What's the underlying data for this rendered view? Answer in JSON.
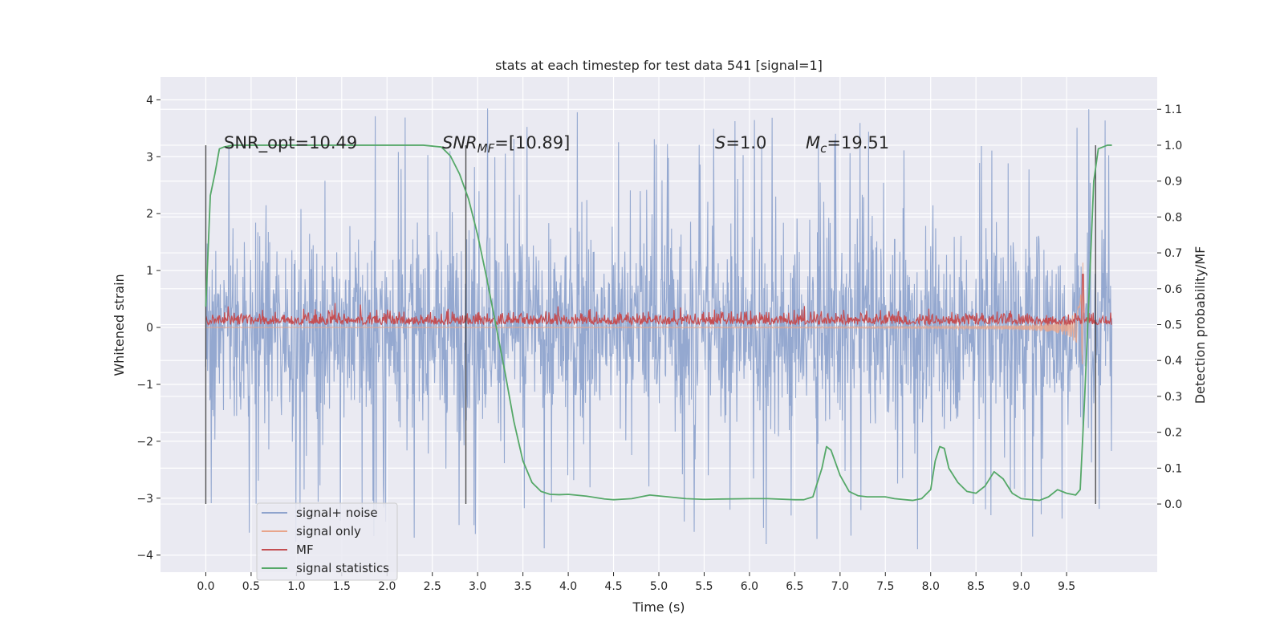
{
  "chart_data": {
    "type": "line",
    "title": "stats at each timestep for test data 541 [signal=1]",
    "xlabel": "Time (s)",
    "ylabel_left": "Whitened strain",
    "ylabel_right": "Detection probability/MF",
    "xlim": [
      -0.5,
      10.5
    ],
    "ylim_left": [
      -4.3,
      4.4
    ],
    "ylim_right": [
      -0.19,
      1.19
    ],
    "x_ticks": [
      "0.0",
      "0.5",
      "1.0",
      "1.5",
      "2.0",
      "2.5",
      "3.0",
      "3.5",
      "4.0",
      "4.5",
      "5.0",
      "5.5",
      "6.0",
      "6.5",
      "7.0",
      "7.5",
      "8.0",
      "8.5",
      "9.0",
      "9.5"
    ],
    "y_ticks_left": [
      "−4",
      "−3",
      "−2",
      "−1",
      "0",
      "1",
      "2",
      "3",
      "4"
    ],
    "y_ticks_right": [
      "0.0",
      "0.1",
      "0.2",
      "0.3",
      "0.4",
      "0.5",
      "0.6",
      "0.7",
      "0.8",
      "0.9",
      "1.0",
      "1.1"
    ],
    "grid": true,
    "legend_position": "lower-left",
    "annotations": {
      "snr_opt": "SNR_opt=10.49",
      "snr_mf_base": "SNR",
      "snr_mf_sub": "MF",
      "snr_mf_value": "=[10.89]",
      "s_label": "S",
      "s_value": "=1.0",
      "mc_base": "M",
      "mc_sub": "c",
      "mc_value": "=19.51"
    },
    "series": [
      {
        "name": "signal+ noise",
        "color": "#8fa4cd",
        "axis": "left",
        "x_range": [
          0.0,
          10.0
        ],
        "approx_range": [
          -3.9,
          4.05
        ],
        "typical_range": [
          -1.9,
          1.9
        ]
      },
      {
        "name": "signal only",
        "color": "#e8a58b",
        "axis": "left",
        "x_range": [
          0.0,
          9.68
        ],
        "chirp_peak_time": 9.68,
        "peak_amplitude": 2.4
      },
      {
        "name": "MF",
        "color": "#c44e52",
        "axis": "right",
        "x_range": [
          0.0,
          10.0
        ],
        "baseline": 0.5,
        "noise_band": [
          0.48,
          0.56
        ],
        "peak": {
          "x": 9.68,
          "y": 0.64
        }
      },
      {
        "name": "signal statistics",
        "color": "#55a868",
        "axis": "right",
        "x": [
          0.0,
          0.05,
          0.1,
          0.15,
          0.2,
          0.3,
          0.5,
          1.0,
          1.5,
          2.0,
          2.4,
          2.6,
          2.7,
          2.8,
          2.9,
          3.0,
          3.1,
          3.2,
          3.3,
          3.4,
          3.5,
          3.6,
          3.7,
          3.8,
          3.9,
          4.0,
          4.2,
          4.4,
          4.5,
          4.7,
          4.9,
          5.1,
          5.3,
          5.5,
          5.7,
          6.0,
          6.2,
          6.5,
          6.6,
          6.7,
          6.8,
          6.85,
          6.9,
          7.0,
          7.1,
          7.2,
          7.3,
          7.5,
          7.6,
          7.8,
          7.9,
          8.0,
          8.05,
          8.1,
          8.15,
          8.2,
          8.3,
          8.4,
          8.5,
          8.6,
          8.7,
          8.8,
          8.9,
          9.0,
          9.2,
          9.3,
          9.4,
          9.5,
          9.6,
          9.65,
          9.7,
          9.75,
          9.8,
          9.85,
          9.9,
          9.95,
          10.0
        ],
        "y": [
          0.55,
          0.86,
          0.92,
          0.99,
          0.995,
          1.0,
          1.0,
          1.0,
          1.0,
          1.0,
          1.0,
          0.995,
          0.97,
          0.92,
          0.85,
          0.75,
          0.63,
          0.5,
          0.37,
          0.23,
          0.12,
          0.06,
          0.035,
          0.027,
          0.026,
          0.027,
          0.022,
          0.014,
          0.012,
          0.015,
          0.025,
          0.02,
          0.015,
          0.013,
          0.014,
          0.015,
          0.015,
          0.012,
          0.012,
          0.02,
          0.1,
          0.16,
          0.15,
          0.08,
          0.035,
          0.023,
          0.02,
          0.02,
          0.015,
          0.01,
          0.015,
          0.04,
          0.12,
          0.16,
          0.155,
          0.1,
          0.06,
          0.035,
          0.03,
          0.05,
          0.09,
          0.07,
          0.03,
          0.015,
          0.01,
          0.02,
          0.04,
          0.03,
          0.025,
          0.04,
          0.3,
          0.6,
          0.9,
          0.99,
          0.995,
          1.0,
          1.0
        ]
      }
    ],
    "vertical_markers": [
      0.0,
      2.87,
      9.82
    ]
  }
}
